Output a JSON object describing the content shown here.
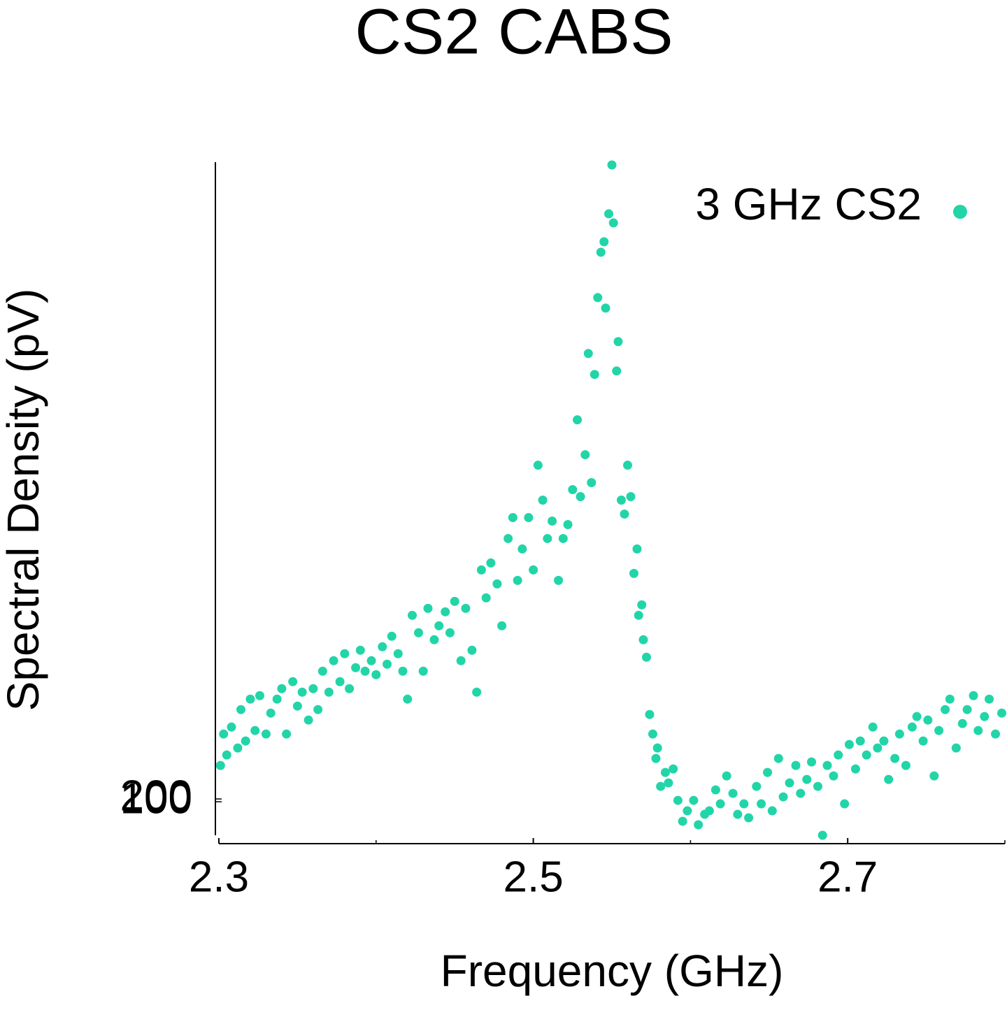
{
  "chart_data": {
    "type": "scatter",
    "title": "CS2 CABS",
    "xlabel": "Frequency (GHz)",
    "ylabel": "Spectral Density (pV)",
    "legend": "upper right",
    "grid": false,
    "xlim": [
      2.3,
      2.8
    ],
    "xticks": [
      2.3,
      2.5,
      2.7
    ],
    "xminor_ticks": [
      2.4,
      2.6,
      2.8
    ],
    "ylim": [
      -1400,
      23000
    ],
    "yticks": [
      100,
      200
    ],
    "series": [
      {
        "name": "3 GHz CS2",
        "color": "#22d5a8",
        "x": [
          2.301,
          2.303,
          2.305,
          2.308,
          2.312,
          2.314,
          2.317,
          2.32,
          2.323,
          2.326,
          2.33,
          2.333,
          2.337,
          2.34,
          2.343,
          2.347,
          2.35,
          2.353,
          2.357,
          2.36,
          2.363,
          2.366,
          2.37,
          2.373,
          2.377,
          2.38,
          2.383,
          2.387,
          2.39,
          2.393,
          2.397,
          2.4,
          2.404,
          2.407,
          2.41,
          2.414,
          2.417,
          2.42,
          2.423,
          2.427,
          2.43,
          2.433,
          2.437,
          2.44,
          2.444,
          2.447,
          2.45,
          2.454,
          2.457,
          2.461,
          2.464,
          2.467,
          2.47,
          2.473,
          2.477,
          2.48,
          2.484,
          2.487,
          2.49,
          2.493,
          2.497,
          2.5,
          2.503,
          2.506,
          2.509,
          2.512,
          2.516,
          2.519,
          2.522,
          2.525,
          2.528,
          2.53,
          2.533,
          2.535,
          2.537,
          2.539,
          2.541,
          2.543,
          2.545,
          2.546,
          2.548,
          2.55,
          2.551,
          2.553,
          2.554,
          2.556,
          2.558,
          2.56,
          2.562,
          2.564,
          2.566,
          2.567,
          2.569,
          2.57,
          2.572,
          2.574,
          2.576,
          2.578,
          2.579,
          2.581,
          2.584,
          2.586,
          2.589,
          2.592,
          2.595,
          2.598,
          2.602,
          2.605,
          2.609,
          2.612,
          2.616,
          2.619,
          2.623,
          2.627,
          2.63,
          2.634,
          2.637,
          2.642,
          2.645,
          2.649,
          2.652,
          2.656,
          2.659,
          2.663,
          2.667,
          2.67,
          2.674,
          2.677,
          2.681,
          2.684,
          2.687,
          2.691,
          2.694,
          2.698,
          2.701,
          2.705,
          2.708,
          2.712,
          2.716,
          2.719,
          2.723,
          2.726,
          2.73,
          2.733,
          2.737,
          2.741,
          2.744,
          2.748,
          2.751,
          2.755,
          2.758,
          2.762,
          2.765,
          2.769,
          2.773,
          2.776,
          2.78,
          2.783,
          2.787,
          2.79,
          2.794,
          2.798
        ],
        "values": [
          1400,
          2525,
          1775,
          2775,
          2025,
          3400,
          2275,
          3775,
          2650,
          3900,
          2525,
          3275,
          3775,
          4150,
          2525,
          4400,
          3525,
          4025,
          3025,
          4150,
          3400,
          4775,
          4025,
          5150,
          4400,
          5400,
          4150,
          4900,
          5525,
          4775,
          5150,
          4650,
          5650,
          5025,
          6025,
          5400,
          4775,
          3775,
          6775,
          6150,
          4775,
          7025,
          5900,
          6400,
          6900,
          6150,
          7275,
          5150,
          7025,
          5525,
          4025,
          8400,
          7400,
          8650,
          7900,
          6400,
          9525,
          10275,
          8025,
          9150,
          10275,
          8400,
          12150,
          10900,
          9525,
          10150,
          8025,
          9525,
          10025,
          11275,
          13775,
          11025,
          12525,
          16150,
          11525,
          15400,
          18150,
          19775,
          20150,
          17775,
          21150,
          22900,
          20825,
          15525,
          16575,
          10900,
          10400,
          12150,
          11025,
          8275,
          9150,
          6775,
          7150,
          5900,
          5275,
          3225,
          2525,
          1650,
          2025,
          650,
          1150,
          775,
          1275,
          150,
          -600,
          -225,
          150,
          -725,
          -350,
          -225,
          525,
          25,
          1025,
          400,
          -350,
          25,
          -475,
          650,
          25,
          1150,
          -225,
          1650,
          275,
          775,
          1400,
          400,
          900,
          1525,
          650,
          -1100,
          1400,
          1025,
          1775,
          25,
          2150,
          1275,
          2275,
          1775,
          2775,
          2025,
          2275,
          900,
          1650,
          2525,
          1400,
          2775,
          3150,
          2275,
          3025,
          1025,
          2650,
          3400,
          3775,
          2025,
          2900,
          3400,
          3900,
          2650,
          3150,
          3775,
          2525,
          3275
        ]
      }
    ]
  }
}
